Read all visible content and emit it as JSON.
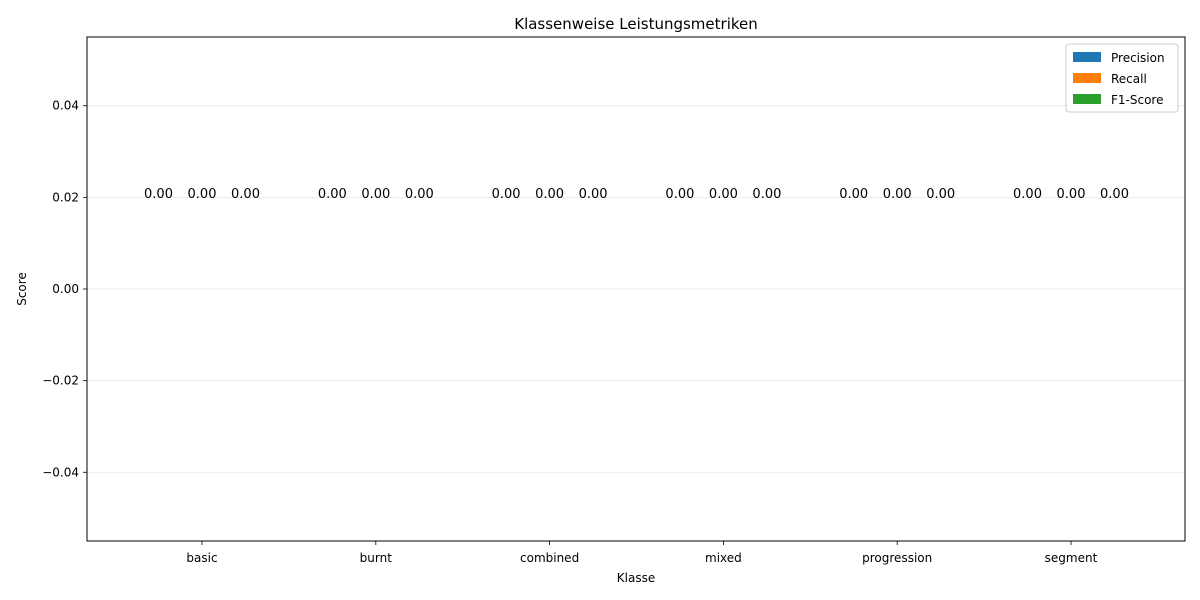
{
  "chart_data": {
    "type": "bar",
    "title": "Klassenweise Leistungsmetriken",
    "xlabel": "Klasse",
    "ylabel": "Score",
    "categories": [
      "basic",
      "burnt",
      "combined",
      "mixed",
      "progression",
      "segment"
    ],
    "series": [
      {
        "name": "Precision",
        "color": "#1f77b4",
        "values": [
          0,
          0,
          0,
          0,
          0,
          0
        ],
        "labels": [
          "0.00",
          "0.00",
          "0.00",
          "0.00",
          "0.00",
          "0.00"
        ]
      },
      {
        "name": "Recall",
        "color": "#ff7f0e",
        "values": [
          0,
          0,
          0,
          0,
          0,
          0
        ],
        "labels": [
          "0.00",
          "0.00",
          "0.00",
          "0.00",
          "0.00",
          "0.00"
        ]
      },
      {
        "name": "F1-Score",
        "color": "#2ca02c",
        "values": [
          0,
          0,
          0,
          0,
          0,
          0
        ],
        "labels": [
          "0.00",
          "0.00",
          "0.00",
          "0.00",
          "0.00",
          "0.00"
        ]
      }
    ],
    "ylim": [
      -0.055,
      0.055
    ],
    "yticks": [
      -0.04,
      -0.02,
      0.0,
      0.02,
      0.04
    ],
    "ytick_labels": [
      "−0.04",
      "−0.02",
      "0.00",
      "0.02",
      "0.04"
    ],
    "grid": "y",
    "legend_position": "top-right"
  }
}
